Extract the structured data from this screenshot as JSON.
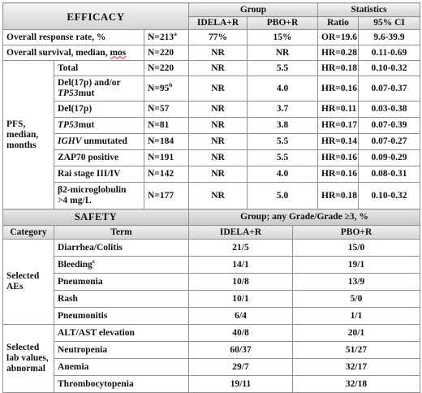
{
  "efficacy_header": {
    "title": "EFFICACY",
    "group_label": "Group",
    "statistics_label": "Statistics",
    "col_idela": "IDELA+R",
    "col_pbo": "PBO+R",
    "col_ratio": "Ratio",
    "col_ci": "95% CI"
  },
  "orr": {
    "label": "Overall response rate, %",
    "n": "N=213",
    "n_sup": "a",
    "idela": "77%",
    "pbo": "15%",
    "ratio": "OR=19.6",
    "ci": "9.6-39.9"
  },
  "os": {
    "label_a": "Overall survival, median, ",
    "label_b": "mos",
    "n": "N=220",
    "idela": "NR",
    "pbo": "NR",
    "ratio": "HR=0.28",
    "ci": "0.11-0.69"
  },
  "pfs": {
    "category": "PFS, median, months",
    "rows": [
      {
        "label": "Total",
        "n": "N=220",
        "idela": "NR",
        "pbo": "5.5",
        "ratio": "HR=0.18",
        "ci": "0.10-0.32"
      },
      {
        "label_a": "Del(17p) and/or",
        "label_b": "TP53",
        "label_c": "mut",
        "n": "N=95",
        "n_sup": "b",
        "idela": "NR",
        "pbo": "4.0",
        "ratio": "HR=0.16",
        "ci": "0.07-0.37"
      },
      {
        "label": "Del(17p)",
        "n": "N=57",
        "idela": "NR",
        "pbo": "3.7",
        "ratio": "HR=0.11",
        "ci": "0.03-0.38"
      },
      {
        "label_a": "TP53",
        "label_b": "mut",
        "n": "N=81",
        "idela": "NR",
        "pbo": "3.8",
        "ratio": "HR=0.17",
        "ci": "0.07-0.39"
      },
      {
        "label_a": "IGHV",
        "label_b": " unmutated",
        "n": "N=184",
        "idela": "NR",
        "pbo": "5.5",
        "ratio": "HR=0.14",
        "ci": "0.07-0.27"
      },
      {
        "label": "ZAP70 positive",
        "n": "N=191",
        "idela": "NR",
        "pbo": "5.5",
        "ratio": "HR=0.16",
        "ci": "0.09-0.29"
      },
      {
        "label": "Rai stage III/IV",
        "n": "N=142",
        "idela": "NR",
        "pbo": "4.0",
        "ratio": "HR=0.16",
        "ci": "0.08-0.31"
      },
      {
        "label_a": "β2-microglobulin",
        "label_b": ">4 mg/L",
        "n": "N=177",
        "idela": "NR",
        "pbo": "5.0",
        "ratio": "HR=0.18",
        "ci": "0.10-0.32"
      }
    ]
  },
  "safety_header": {
    "title": "SAFETY",
    "group_label": "Group; any Grade/Grade ≥3, %",
    "category_label": "Category",
    "term_label": "Term",
    "col_idela": "IDELA+R",
    "col_pbo": "PBO+R"
  },
  "aes": {
    "category": "Selected AEs",
    "rows": [
      {
        "term": "Diarrhea/Colitis",
        "idela": "21/5",
        "pbo": "15/0"
      },
      {
        "term": "Bleeding",
        "term_sup": "c",
        "idela": "14/1",
        "pbo": "19/1"
      },
      {
        "term": "Pneumonia",
        "idela": "10/8",
        "pbo": "13/9"
      },
      {
        "term": "Rash",
        "idela": "10/1",
        "pbo": "5/0"
      },
      {
        "term": "Pneumonitis",
        "idela": "6/4",
        "pbo": "1/1"
      }
    ]
  },
  "labs": {
    "category": "Selected lab values, abnormal",
    "rows": [
      {
        "term": "ALT/AST elevation",
        "idela": "40/8",
        "pbo": "20/1"
      },
      {
        "term": "Neutropenia",
        "idela": "60/37",
        "pbo": "51/27"
      },
      {
        "term": "Anemia",
        "idela": "29/7",
        "pbo": "32/17"
      },
      {
        "term": "Thrombocytopenia",
        "idela": "19/11",
        "pbo": "32/18"
      }
    ]
  }
}
